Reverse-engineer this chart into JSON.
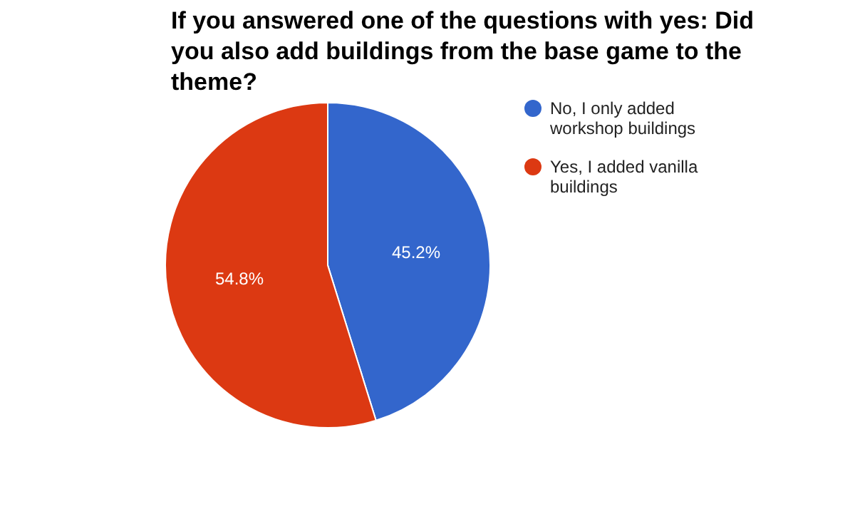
{
  "chart_data": {
    "type": "pie",
    "title": "If you answered one of the questions with yes: Did you also add buildings from the base game to the theme?",
    "categories": [
      "No, I only added workshop buildings",
      "Yes, I added vanilla buildings"
    ],
    "values": [
      45.2,
      54.8
    ],
    "colors": [
      "#3366cc",
      "#dc3912"
    ],
    "value_labels": [
      "45.2%",
      "54.8%"
    ],
    "legend": "right"
  }
}
